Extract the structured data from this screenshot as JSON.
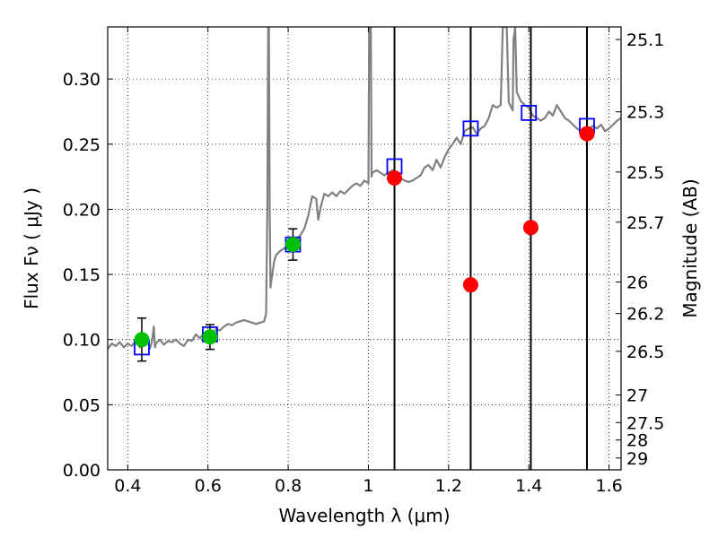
{
  "chart_data": {
    "type": "scatter",
    "xlabel": "Wavelength  λ (μm)",
    "ylabel": "Flux  Fν  ( μJy )",
    "ylabel_right": "Magnitude (AB)",
    "xlim": [
      0.35,
      1.63
    ],
    "ylim": [
      0.0,
      0.34
    ],
    "grid": true,
    "x_ticks": [
      0.4,
      0.6,
      0.8,
      1.0,
      1.2,
      1.4,
      1.6
    ],
    "x_tick_labels": [
      "0.4",
      "0.6",
      "0.8",
      "1",
      "1.2",
      "1.4",
      "1.6"
    ],
    "y_ticks": [
      0.0,
      0.05,
      0.1,
      0.15,
      0.2,
      0.25,
      0.3
    ],
    "y_tick_labels": [
      "0.00",
      "0.05",
      "0.10",
      "0.15",
      "0.20",
      "0.25",
      "0.30"
    ],
    "right_ticks": [
      {
        "label": "25.1",
        "flux": 0.3303
      },
      {
        "label": "25.3",
        "flux": 0.2748
      },
      {
        "label": "25.5",
        "flux": 0.2286
      },
      {
        "label": "25.7",
        "flux": 0.1901
      },
      {
        "label": "26",
        "flux": 0.1442
      },
      {
        "label": "26.2",
        "flux": 0.12
      },
      {
        "label": "26.5",
        "flux": 0.091
      },
      {
        "label": "27",
        "flux": 0.0575
      },
      {
        "label": "27.5",
        "flux": 0.0363
      },
      {
        "label": "28",
        "flux": 0.0229
      },
      {
        "label": "29",
        "flux": 0.0091
      }
    ],
    "model_spectrum": {
      "color": "#808080",
      "points": [
        [
          0.35,
          0.093
        ],
        [
          0.36,
          0.097
        ],
        [
          0.37,
          0.095
        ],
        [
          0.38,
          0.098
        ],
        [
          0.39,
          0.094
        ],
        [
          0.4,
          0.097
        ],
        [
          0.41,
          0.095
        ],
        [
          0.42,
          0.099
        ],
        [
          0.43,
          0.094
        ],
        [
          0.44,
          0.097
        ],
        [
          0.45,
          0.099
        ],
        [
          0.455,
          0.093
        ],
        [
          0.46,
          0.098
        ],
        [
          0.465,
          0.11
        ],
        [
          0.468,
          0.094
        ],
        [
          0.47,
          0.097
        ],
        [
          0.48,
          0.1
        ],
        [
          0.49,
          0.096
        ],
        [
          0.5,
          0.099
        ],
        [
          0.51,
          0.098
        ],
        [
          0.52,
          0.1
        ],
        [
          0.53,
          0.097
        ],
        [
          0.54,
          0.095
        ],
        [
          0.55,
          0.1
        ],
        [
          0.56,
          0.099
        ],
        [
          0.57,
          0.104
        ],
        [
          0.58,
          0.101
        ],
        [
          0.59,
          0.105
        ],
        [
          0.6,
          0.106
        ],
        [
          0.61,
          0.104
        ],
        [
          0.62,
          0.108
        ],
        [
          0.63,
          0.107
        ],
        [
          0.64,
          0.11
        ],
        [
          0.65,
          0.112
        ],
        [
          0.66,
          0.111
        ],
        [
          0.67,
          0.113
        ],
        [
          0.68,
          0.114
        ],
        [
          0.69,
          0.115
        ],
        [
          0.7,
          0.114
        ],
        [
          0.71,
          0.113
        ],
        [
          0.72,
          0.112
        ],
        [
          0.73,
          0.113
        ],
        [
          0.74,
          0.114
        ],
        [
          0.745,
          0.12
        ],
        [
          0.748,
          0.2
        ],
        [
          0.75,
          0.34
        ],
        [
          0.752,
          0.34
        ],
        [
          0.754,
          0.2
        ],
        [
          0.756,
          0.14
        ],
        [
          0.76,
          0.15
        ],
        [
          0.765,
          0.16
        ],
        [
          0.77,
          0.165
        ],
        [
          0.78,
          0.168
        ],
        [
          0.79,
          0.17
        ],
        [
          0.8,
          0.172
        ],
        [
          0.81,
          0.174
        ],
        [
          0.82,
          0.176
        ],
        [
          0.83,
          0.18
        ],
        [
          0.84,
          0.185
        ],
        [
          0.85,
          0.195
        ],
        [
          0.86,
          0.21
        ],
        [
          0.87,
          0.208
        ],
        [
          0.875,
          0.192
        ],
        [
          0.88,
          0.2
        ],
        [
          0.89,
          0.212
        ],
        [
          0.9,
          0.21
        ],
        [
          0.91,
          0.213
        ],
        [
          0.92,
          0.21
        ],
        [
          0.93,
          0.214
        ],
        [
          0.94,
          0.212
        ],
        [
          0.95,
          0.215
        ],
        [
          0.96,
          0.218
        ],
        [
          0.97,
          0.22
        ],
        [
          0.98,
          0.218
        ],
        [
          0.99,
          0.222
        ],
        [
          1.0,
          0.22
        ],
        [
          1.002,
          0.34
        ],
        [
          1.006,
          0.34
        ],
        [
          1.008,
          0.225
        ],
        [
          1.01,
          0.228
        ],
        [
          1.02,
          0.23
        ],
        [
          1.03,
          0.228
        ],
        [
          1.04,
          0.226
        ],
        [
          1.05,
          0.228
        ],
        [
          1.06,
          0.23
        ],
        [
          1.07,
          0.228
        ],
        [
          1.08,
          0.224
        ],
        [
          1.09,
          0.222
        ],
        [
          1.1,
          0.221
        ],
        [
          1.11,
          0.222
        ],
        [
          1.12,
          0.224
        ],
        [
          1.13,
          0.226
        ],
        [
          1.14,
          0.232
        ],
        [
          1.15,
          0.234
        ],
        [
          1.16,
          0.23
        ],
        [
          1.17,
          0.238
        ],
        [
          1.18,
          0.232
        ],
        [
          1.19,
          0.24
        ],
        [
          1.2,
          0.246
        ],
        [
          1.21,
          0.25
        ],
        [
          1.22,
          0.255
        ],
        [
          1.23,
          0.25
        ],
        [
          1.24,
          0.26
        ],
        [
          1.25,
          0.262
        ],
        [
          1.26,
          0.263
        ],
        [
          1.27,
          0.258
        ],
        [
          1.28,
          0.262
        ],
        [
          1.29,
          0.264
        ],
        [
          1.3,
          0.27
        ],
        [
          1.31,
          0.28
        ],
        [
          1.32,
          0.278
        ],
        [
          1.33,
          0.28
        ],
        [
          1.335,
          0.34
        ],
        [
          1.345,
          0.34
        ],
        [
          1.35,
          0.282
        ],
        [
          1.36,
          0.276
        ],
        [
          1.362,
          0.33
        ],
        [
          1.366,
          0.34
        ],
        [
          1.37,
          0.29
        ],
        [
          1.38,
          0.283
        ],
        [
          1.39,
          0.28
        ],
        [
          1.4,
          0.278
        ],
        [
          1.41,
          0.272
        ],
        [
          1.42,
          0.27
        ],
        [
          1.43,
          0.268
        ],
        [
          1.44,
          0.27
        ],
        [
          1.45,
          0.275
        ],
        [
          1.46,
          0.272
        ],
        [
          1.47,
          0.28
        ],
        [
          1.48,
          0.275
        ],
        [
          1.49,
          0.27
        ],
        [
          1.5,
          0.268
        ],
        [
          1.51,
          0.265
        ],
        [
          1.52,
          0.262
        ],
        [
          1.53,
          0.26
        ],
        [
          1.54,
          0.26
        ],
        [
          1.55,
          0.262
        ],
        [
          1.56,
          0.264
        ],
        [
          1.57,
          0.262
        ],
        [
          1.58,
          0.265
        ],
        [
          1.59,
          0.26
        ],
        [
          1.6,
          0.262
        ],
        [
          1.61,
          0.265
        ],
        [
          1.62,
          0.268
        ],
        [
          1.63,
          0.27
        ]
      ]
    },
    "vertical_lines": [
      1.065,
      1.255,
      1.405,
      1.545
    ],
    "series": [
      {
        "marker": "square-open",
        "color": "#0000ff",
        "points": [
          {
            "x": 0.435,
            "y": 0.094
          },
          {
            "x": 0.605,
            "y": 0.104
          },
          {
            "x": 0.812,
            "y": 0.173
          },
          {
            "x": 1.065,
            "y": 0.233
          },
          {
            "x": 1.255,
            "y": 0.262
          },
          {
            "x": 1.4,
            "y": 0.274
          },
          {
            "x": 1.545,
            "y": 0.264
          }
        ]
      },
      {
        "marker": "circle",
        "color": "#00c000",
        "points": [
          {
            "x": 0.435,
            "y": 0.1,
            "err": 0.0165
          },
          {
            "x": 0.605,
            "y": 0.102,
            "err": 0.0095
          },
          {
            "x": 0.812,
            "y": 0.173,
            "err": 0.012
          }
        ]
      },
      {
        "marker": "circle",
        "color": "#ff0000",
        "points": [
          {
            "x": 1.065,
            "y": 0.224
          },
          {
            "x": 1.255,
            "y": 0.142
          },
          {
            "x": 1.405,
            "y": 0.186
          },
          {
            "x": 1.545,
            "y": 0.258
          }
        ]
      }
    ]
  }
}
